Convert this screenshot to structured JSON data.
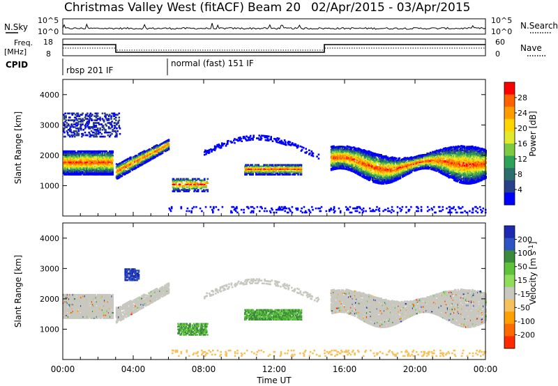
{
  "header": {
    "title": "Christmas Valley West (fitACF)",
    "beam": "Beam 20",
    "date_range": "02/Apr/2015 - 03/Apr/2015"
  },
  "top_panels": {
    "nsky_label": "N.Sky",
    "nsearch_label": "N.Search",
    "left_ticks": [
      "10^5",
      "10^0"
    ],
    "right_ticks": [
      "10^5",
      "10^0"
    ],
    "freq_label": "Freq.",
    "freq_unit": "[MHz]",
    "freq_ticks": [
      "18",
      "8"
    ],
    "nave_label": "Nave",
    "nave_ticks": [
      "60",
      "0"
    ],
    "cpid_label": "CPID",
    "cpid_modes": [
      "rbsp 201 IF",
      "normal (fast) 151 IF"
    ]
  },
  "chart_data": [
    {
      "type": "heatmap",
      "name": "power",
      "ylabel": "Slant Range [km]",
      "yticks": [
        1000,
        2000,
        3000,
        4000
      ],
      "ylim": [
        0,
        4500
      ],
      "xlim_hours": [
        0,
        24
      ],
      "colorbar": {
        "label": "Power [dB]",
        "ticks": [
          "28",
          "24",
          "20",
          "16",
          "12",
          "8",
          "4"
        ],
        "colors": [
          "#ff0000",
          "#ff6000",
          "#ff9d00",
          "#ffd500",
          "#e1e92f",
          "#7dc940",
          "#2ea259",
          "#2b6e6d",
          "#28408a",
          "#0000ff"
        ]
      }
    },
    {
      "type": "heatmap",
      "name": "velocity",
      "ylabel": "Slant Range [km]",
      "yticks": [
        1000,
        2000,
        3000,
        4000
      ],
      "ylim": [
        0,
        4500
      ],
      "xlim_hours": [
        0,
        24
      ],
      "colorbar": {
        "label": "Velocity [m s-1]",
        "ticks": [
          "200",
          "100",
          "50",
          "15",
          "-15",
          "-50",
          "-100",
          "-200"
        ],
        "colors": [
          "#1c2ab2",
          "#2d53c4",
          "#3c8a3c",
          "#5ec33a",
          "#8fdd5a",
          "#c8c8c0",
          "#f5c15d",
          "#ffa000",
          "#ff6a00",
          "#ff2a00"
        ]
      }
    }
  ],
  "xaxis": {
    "ticks": [
      "00:00",
      "04:00",
      "08:00",
      "12:00",
      "16:00",
      "20:00",
      "00:00"
    ],
    "label": "Time UT"
  }
}
